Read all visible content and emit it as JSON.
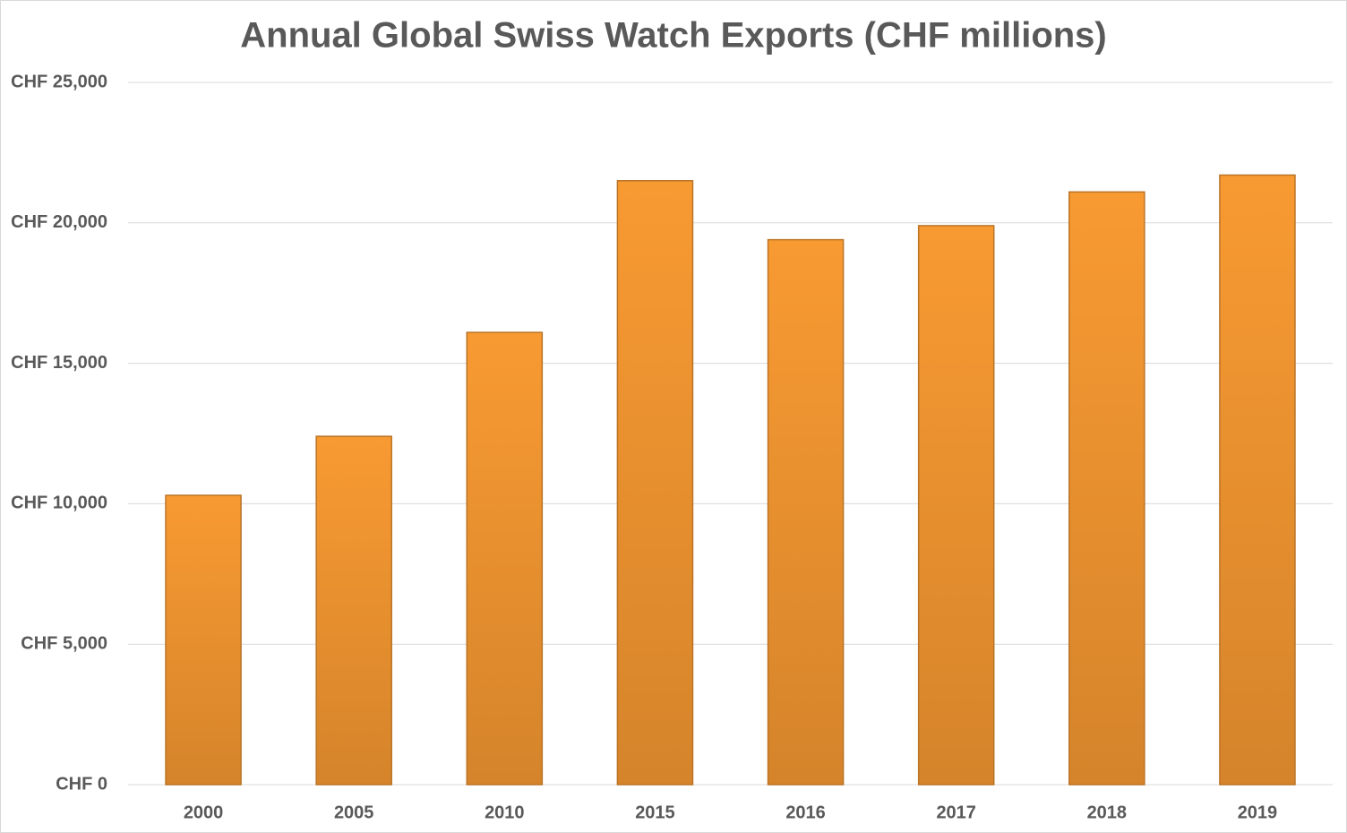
{
  "chart_data": {
    "type": "bar",
    "title": "Annual Global Swiss Watch Exports (CHF millions)",
    "categories": [
      "2000",
      "2005",
      "2010",
      "2015",
      "2016",
      "2017",
      "2018",
      "2019"
    ],
    "values": [
      10300,
      12400,
      16100,
      21500,
      19400,
      19900,
      21100,
      21700
    ],
    "color": "#f89a32",
    "ylim": [
      0,
      25000
    ],
    "yticks": [
      {
        "value": 0,
        "label": "CHF 0"
      },
      {
        "value": 5000,
        "label": "CHF 5,000"
      },
      {
        "value": 10000,
        "label": "CHF 10,000"
      },
      {
        "value": 15000,
        "label": "CHF 15,000"
      },
      {
        "value": 20000,
        "label": "CHF 20,000"
      },
      {
        "value": 25000,
        "label": "CHF 25,000"
      }
    ],
    "grid": true
  }
}
